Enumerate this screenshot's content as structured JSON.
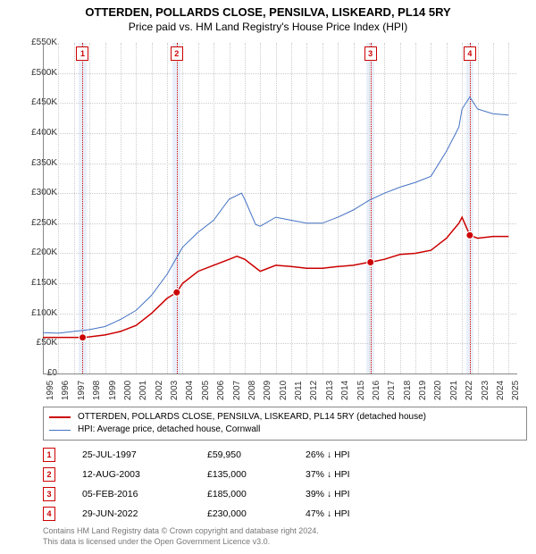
{
  "title": "OTTERDEN, POLLARDS CLOSE, PENSILVA, LISKEARD, PL14 5RY",
  "subtitle": "Price paid vs. HM Land Registry's House Price Index (HPI)",
  "chart": {
    "type": "line-dual",
    "ylim": [
      0,
      550000
    ],
    "ytick_step": 50000,
    "ytick_prefix": "£",
    "ytick_suffix": "K",
    "xlim": [
      1995,
      2025.5
    ],
    "xticks": [
      1995,
      1996,
      1997,
      1998,
      1999,
      2000,
      2001,
      2002,
      2003,
      2004,
      2005,
      2006,
      2007,
      2008,
      2009,
      2010,
      2011,
      2012,
      2013,
      2014,
      2015,
      2016,
      2017,
      2018,
      2019,
      2020,
      2021,
      2022,
      2023,
      2024,
      2025
    ],
    "grid_color": "#cccccc",
    "background_color": "#ffffff",
    "band_color": "#eaf0fa",
    "series": [
      {
        "name": "property",
        "color": "#cc0000",
        "width": 1.5,
        "data": [
          [
            1995,
            60
          ],
          [
            1997.56,
            60
          ],
          [
            1997.56,
            59.95
          ],
          [
            1998,
            61
          ],
          [
            1999,
            64
          ],
          [
            2000,
            70
          ],
          [
            2001,
            80
          ],
          [
            2002,
            100
          ],
          [
            2003,
            125
          ],
          [
            2003.62,
            135
          ],
          [
            2004,
            150
          ],
          [
            2005,
            170
          ],
          [
            2006,
            180
          ],
          [
            2007,
            190
          ],
          [
            2007.5,
            195
          ],
          [
            2008,
            190
          ],
          [
            2008.5,
            180
          ],
          [
            2009,
            170
          ],
          [
            2010,
            180
          ],
          [
            2011,
            178
          ],
          [
            2012,
            175
          ],
          [
            2013,
            175
          ],
          [
            2014,
            178
          ],
          [
            2015,
            180
          ],
          [
            2016,
            185
          ],
          [
            2016.1,
            185
          ],
          [
            2017,
            190
          ],
          [
            2018,
            198
          ],
          [
            2019,
            200
          ],
          [
            2020,
            205
          ],
          [
            2021,
            225
          ],
          [
            2021.8,
            250
          ],
          [
            2022,
            260
          ],
          [
            2022.5,
            230
          ],
          [
            2023,
            225
          ],
          [
            2024,
            228
          ],
          [
            2025,
            228
          ]
        ]
      },
      {
        "name": "hpi",
        "color": "#4472c4",
        "width": 1,
        "data": [
          [
            1995,
            68
          ],
          [
            1996,
            67
          ],
          [
            1997,
            70
          ],
          [
            1998,
            73
          ],
          [
            1999,
            78
          ],
          [
            2000,
            90
          ],
          [
            2001,
            105
          ],
          [
            2002,
            130
          ],
          [
            2003,
            165
          ],
          [
            2004,
            210
          ],
          [
            2005,
            235
          ],
          [
            2006,
            255
          ],
          [
            2007,
            290
          ],
          [
            2007.8,
            300
          ],
          [
            2008,
            290
          ],
          [
            2008.7,
            248
          ],
          [
            2009,
            245
          ],
          [
            2010,
            260
          ],
          [
            2011,
            255
          ],
          [
            2012,
            250
          ],
          [
            2013,
            250
          ],
          [
            2014,
            260
          ],
          [
            2015,
            272
          ],
          [
            2016,
            288
          ],
          [
            2017,
            300
          ],
          [
            2018,
            310
          ],
          [
            2019,
            318
          ],
          [
            2020,
            328
          ],
          [
            2021,
            370
          ],
          [
            2021.8,
            410
          ],
          [
            2022,
            440
          ],
          [
            2022.5,
            460
          ],
          [
            2023,
            440
          ],
          [
            2024,
            432
          ],
          [
            2025,
            430
          ]
        ]
      }
    ],
    "events": [
      {
        "n": "1",
        "year": 1997.56,
        "price": 59950
      },
      {
        "n": "2",
        "year": 2003.62,
        "price": 135000
      },
      {
        "n": "3",
        "year": 2016.1,
        "price": 185000
      },
      {
        "n": "4",
        "year": 2022.5,
        "price": 230000
      }
    ]
  },
  "legend": {
    "property": "OTTERDEN, POLLARDS CLOSE, PENSILVA, LISKEARD, PL14 5RY (detached house)",
    "hpi": "HPI: Average price, detached house, Cornwall"
  },
  "sales": [
    {
      "n": "1",
      "date": "25-JUL-1997",
      "price": "£59,950",
      "pct": "26% ↓ HPI"
    },
    {
      "n": "2",
      "date": "12-AUG-2003",
      "price": "£135,000",
      "pct": "37% ↓ HPI"
    },
    {
      "n": "3",
      "date": "05-FEB-2016",
      "price": "£185,000",
      "pct": "39% ↓ HPI"
    },
    {
      "n": "4",
      "date": "29-JUN-2022",
      "price": "£230,000",
      "pct": "47% ↓ HPI"
    }
  ],
  "attribution": {
    "line1": "Contains HM Land Registry data © Crown copyright and database right 2024.",
    "line2": "This data is licensed under the Open Government Licence v3.0."
  }
}
